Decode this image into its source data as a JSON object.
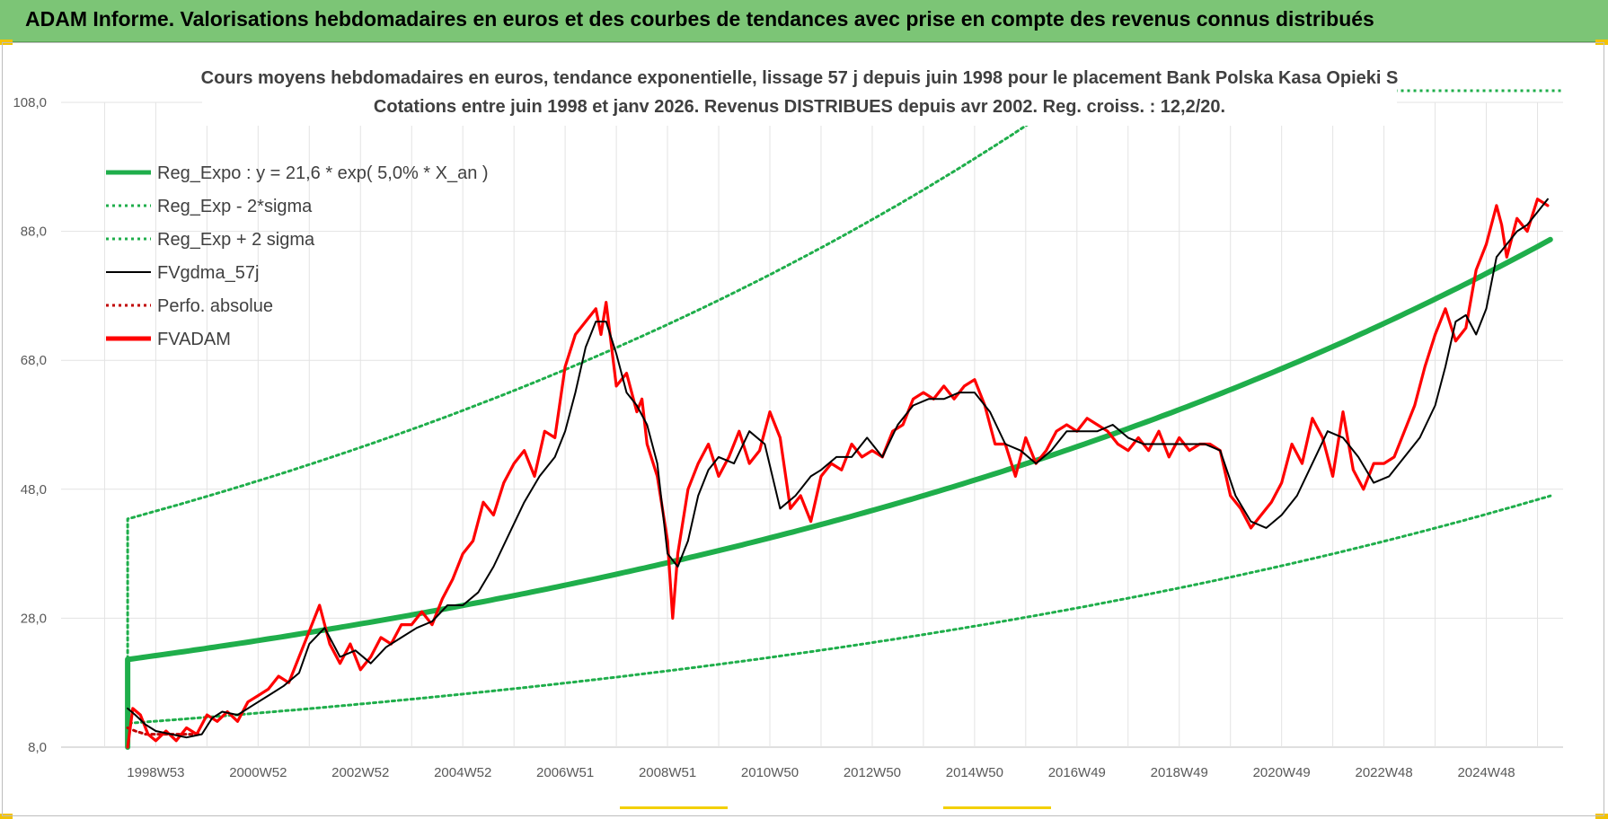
{
  "banner": {
    "title": "ADAM Informe. Valorisations hebdomadaires en euros et des courbes de tendances avec prise en compte des revenus connus distribués"
  },
  "colors": {
    "banner": "#7cc576",
    "reg_expo": "#1fae4b",
    "sigma": "#1fae4b",
    "fvgdma": "#000000",
    "perfo": "#c00000",
    "fvadam": "#ff0000"
  },
  "chart_data": {
    "type": "line",
    "title": "Cours moyens hebdomadaires en euros, tendance exponentielle, lissage 57 j depuis juin 1998 pour le placement Bank Polska Kasa Opieki S",
    "subtitle": "Cotations entre juin 1998 et janv 2026. Revenus DISTRIBUES depuis avr 2002. Reg. croiss. : 12,2/20.",
    "y_ticks": [
      "108,0",
      "88,0",
      "68,0",
      "48,0",
      "28,0",
      "8,0"
    ],
    "ylim": [
      8,
      108
    ],
    "xlim": [
      1997.15,
      2026.5
    ],
    "x_ticks": [
      {
        "label": "1998W53",
        "x": 1999.0
      },
      {
        "label": "2000W52",
        "x": 2001.0
      },
      {
        "label": "2002W52",
        "x": 2003.0
      },
      {
        "label": "2004W52",
        "x": 2005.0
      },
      {
        "label": "2006W51",
        "x": 2007.0
      },
      {
        "label": "2008W51",
        "x": 2009.0
      },
      {
        "label": "2010W50",
        "x": 2011.0
      },
      {
        "label": "2012W50",
        "x": 2013.0
      },
      {
        "label": "2014W50",
        "x": 2015.0
      },
      {
        "label": "2016W49",
        "x": 2017.0
      },
      {
        "label": "2018W49",
        "x": 2019.0
      },
      {
        "label": "2020W49",
        "x": 2021.0
      },
      {
        "label": "2022W48",
        "x": 2023.0
      },
      {
        "label": "2024W48",
        "x": 2025.0
      }
    ],
    "grid": true,
    "legend_position": "top-left",
    "series": [
      {
        "name": "Reg_Expo : y = 21,6 * exp( 5,0% *  X_an )",
        "style": "solid-thick",
        "color": "#1fae4b",
        "formula": {
          "a": 21.6,
          "rate": 0.05,
          "x0": 1998.45,
          "x1": 2026.3
        }
      },
      {
        "name": "Reg_Exp - 2*sigma",
        "style": "dotted",
        "color": "#1fae4b",
        "formula": {
          "a": 11.7,
          "rate": 0.05,
          "x0": 1998.45,
          "x1": 2026.3
        }
      },
      {
        "name": "Reg_Exp + 2 sigma",
        "style": "dotted",
        "color": "#1fae4b",
        "formula": {
          "a": 43.4,
          "rate": 0.05,
          "x0": 1998.45,
          "x1": 2026.3
        }
      },
      {
        "name": "FVgdma_57j",
        "style": "solid",
        "color": "#000000",
        "x": [
          1998.45,
          1998.6,
          1998.8,
          1999.0,
          1999.3,
          1999.6,
          1999.9,
          2000.1,
          2000.3,
          2000.6,
          2000.9,
          2001.2,
          2001.5,
          2001.8,
          2002.0,
          2002.3,
          2002.6,
          2002.9,
          2003.2,
          2003.5,
          2003.8,
          2004.1,
          2004.4,
          2004.7,
          2005.0,
          2005.3,
          2005.6,
          2005.9,
          2006.2,
          2006.5,
          2006.8,
          2007.0,
          2007.2,
          2007.4,
          2007.6,
          2007.8,
          2008.0,
          2008.2,
          2008.4,
          2008.6,
          2008.8,
          2009.0,
          2009.2,
          2009.4,
          2009.6,
          2009.8,
          2010.0,
          2010.3,
          2010.6,
          2010.9,
          2011.2,
          2011.5,
          2011.8,
          2012.0,
          2012.3,
          2012.6,
          2012.9,
          2013.2,
          2013.5,
          2013.8,
          2014.1,
          2014.4,
          2014.7,
          2015.0,
          2015.3,
          2015.6,
          2015.9,
          2016.2,
          2016.5,
          2016.8,
          2017.1,
          2017.4,
          2017.7,
          2018.0,
          2018.3,
          2018.6,
          2018.9,
          2019.2,
          2019.5,
          2019.8,
          2020.1,
          2020.4,
          2020.7,
          2021.0,
          2021.3,
          2021.6,
          2021.9,
          2022.2,
          2022.5,
          2022.8,
          2023.1,
          2023.4,
          2023.7,
          2024.0,
          2024.2,
          2024.4,
          2024.6,
          2024.8,
          2025.0,
          2025.2,
          2025.4,
          2025.6,
          2025.8,
          2026.0,
          2026.2
        ],
        "y": [
          14,
          13,
          11.5,
          10.5,
          10,
          9.5,
          10,
          12.5,
          13.5,
          13,
          14.5,
          16,
          17.5,
          19.5,
          24,
          26.5,
          22,
          23,
          21,
          23.5,
          25,
          26.5,
          27.5,
          30,
          30,
          32,
          36,
          41,
          46,
          50,
          53,
          57,
          63,
          70,
          74,
          74,
          69,
          63,
          61,
          58,
          52,
          38,
          36,
          40,
          47,
          51,
          53,
          52,
          57,
          55,
          45,
          47,
          50,
          51,
          53,
          53,
          56,
          53,
          58,
          61,
          62,
          62,
          63,
          63,
          60,
          55,
          54,
          52,
          54,
          57,
          57,
          57,
          58,
          56,
          55,
          55,
          55,
          55,
          55,
          54,
          47,
          43,
          42,
          44,
          47,
          52,
          57,
          56,
          53,
          49,
          50,
          53,
          56,
          61,
          67,
          74,
          75,
          72,
          76,
          84,
          86,
          88,
          89,
          91,
          93
        ]
      },
      {
        "name": "Perfo. absolue",
        "style": "dotted",
        "color": "#c00000",
        "x": [
          1998.45,
          1998.6,
          1998.8,
          1999.0,
          1999.3,
          1999.6,
          1999.9
        ],
        "y": [
          11,
          10.5,
          10,
          10,
          10,
          10,
          10
        ]
      },
      {
        "name": "FVADAM",
        "style": "solid-thick",
        "color": "#ff0000",
        "x": [
          1998.45,
          1998.55,
          1998.7,
          1998.85,
          1999.0,
          1999.2,
          1999.4,
          1999.6,
          1999.8,
          2000.0,
          2000.2,
          2000.4,
          2000.6,
          2000.8,
          2001.0,
          2001.2,
          2001.4,
          2001.6,
          2001.8,
          2002.0,
          2002.2,
          2002.4,
          2002.6,
          2002.8,
          2003.0,
          2003.2,
          2003.4,
          2003.6,
          2003.8,
          2004.0,
          2004.2,
          2004.4,
          2004.6,
          2004.8,
          2005.0,
          2005.2,
          2005.4,
          2005.6,
          2005.8,
          2006.0,
          2006.2,
          2006.4,
          2006.6,
          2006.8,
          2007.0,
          2007.2,
          2007.4,
          2007.6,
          2007.7,
          2007.8,
          2008.0,
          2008.2,
          2008.4,
          2008.5,
          2008.6,
          2008.8,
          2009.0,
          2009.1,
          2009.2,
          2009.4,
          2009.6,
          2009.8,
          2010.0,
          2010.2,
          2010.4,
          2010.6,
          2010.8,
          2011.0,
          2011.2,
          2011.4,
          2011.6,
          2011.8,
          2012.0,
          2012.2,
          2012.4,
          2012.6,
          2012.8,
          2013.0,
          2013.2,
          2013.4,
          2013.6,
          2013.8,
          2014.0,
          2014.2,
          2014.4,
          2014.6,
          2014.8,
          2015.0,
          2015.2,
          2015.4,
          2015.6,
          2015.8,
          2016.0,
          2016.2,
          2016.4,
          2016.6,
          2016.8,
          2017.0,
          2017.2,
          2017.4,
          2017.6,
          2017.8,
          2018.0,
          2018.2,
          2018.4,
          2018.6,
          2018.8,
          2019.0,
          2019.2,
          2019.4,
          2019.6,
          2019.8,
          2020.0,
          2020.2,
          2020.4,
          2020.6,
          2020.8,
          2021.0,
          2021.2,
          2021.4,
          2021.6,
          2021.8,
          2022.0,
          2022.2,
          2022.4,
          2022.6,
          2022.8,
          2023.0,
          2023.2,
          2023.4,
          2023.6,
          2023.8,
          2024.0,
          2024.2,
          2024.4,
          2024.6,
          2024.8,
          2025.0,
          2025.2,
          2025.3,
          2025.4,
          2025.6,
          2025.8,
          2026.0,
          2026.2
        ],
        "y": [
          8,
          14,
          13,
          10,
          9,
          10.5,
          9,
          11,
          10,
          13,
          12,
          13.5,
          12,
          15,
          16,
          17,
          19,
          18,
          22,
          26,
          30,
          24,
          21,
          24,
          20,
          22,
          25,
          24,
          27,
          27,
          29,
          27,
          31,
          34,
          38,
          40,
          46,
          44,
          49,
          52,
          54,
          50,
          57,
          56,
          67,
          72,
          74,
          76,
          72,
          77,
          64,
          66,
          60,
          62,
          55,
          50,
          40,
          28,
          38,
          48,
          52,
          55,
          50,
          53,
          57,
          52,
          54,
          60,
          56,
          45,
          47,
          43,
          50,
          52,
          51,
          55,
          53,
          54,
          53,
          57,
          58,
          62,
          63,
          62,
          64,
          62,
          64,
          65,
          61,
          55,
          55,
          50,
          56,
          52,
          54,
          57,
          58,
          57,
          59,
          58,
          57,
          55,
          54,
          56,
          54,
          57,
          53,
          56,
          54,
          55,
          55,
          54,
          47,
          45,
          42,
          44,
          46,
          49,
          55,
          52,
          59,
          56,
          50,
          60,
          51,
          48,
          52,
          52,
          53,
          57,
          61,
          67,
          72,
          76,
          71,
          73,
          82,
          86,
          92,
          89,
          84,
          90,
          88,
          93,
          92
        ]
      }
    ]
  }
}
